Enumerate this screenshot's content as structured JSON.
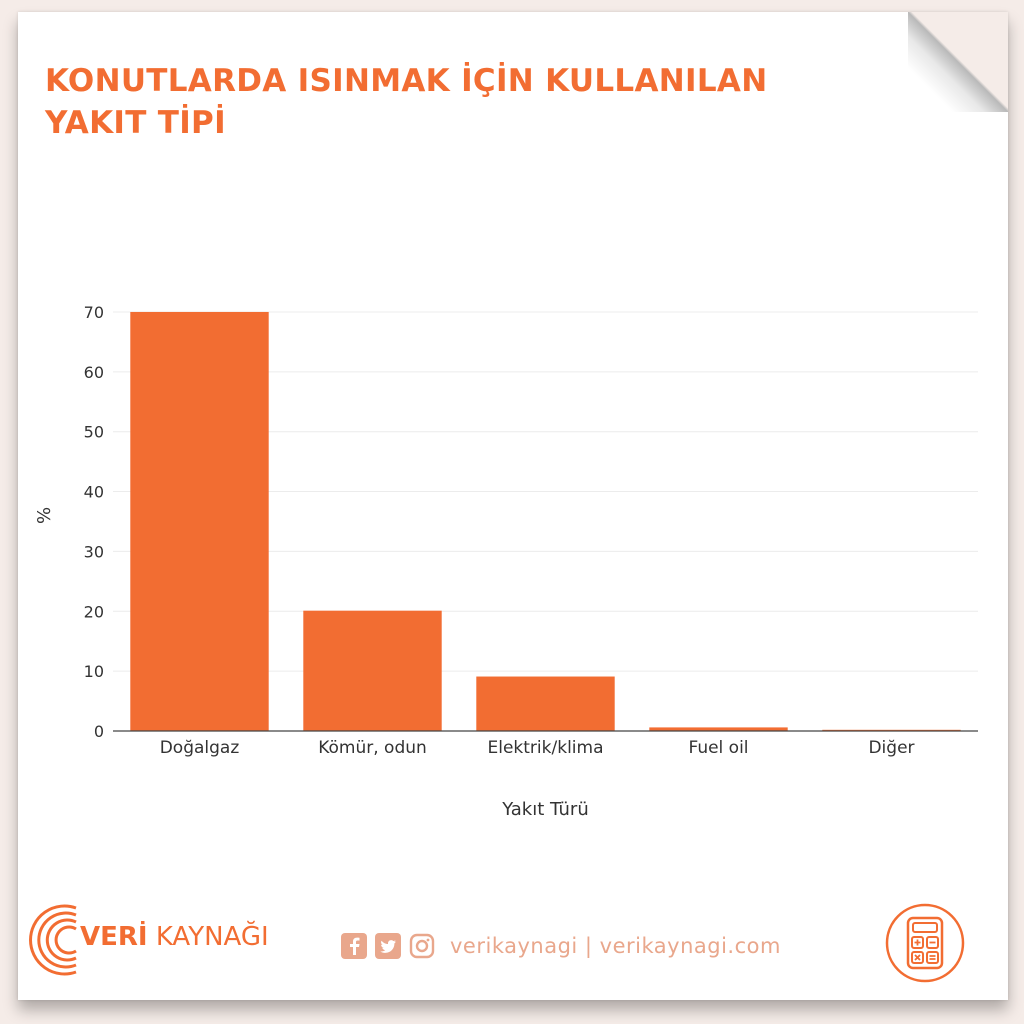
{
  "title_lines": [
    "KONUTLARDA ISINMAK İÇİN KULLANILAN",
    "YAKIT TİPİ"
  ],
  "chart_data": {
    "type": "bar",
    "title": "KONUTLARDA ISINMAK İÇİN KULLANILAN YAKIT TİPİ",
    "categories": [
      "Doğalgaz",
      "Kömür, odun",
      "Elektrik/klima",
      "Fuel oil",
      "Diğer"
    ],
    "values": [
      70,
      20.1,
      9.1,
      0.6,
      0.2
    ],
    "xlabel": "Yakıt Türü",
    "ylabel": "%",
    "ylim": [
      0,
      72
    ],
    "yticks": [
      0,
      10,
      20,
      30,
      40,
      50,
      60,
      70
    ],
    "grid": true,
    "bar_color": "#f26d32"
  },
  "footer": {
    "brand_bold": "VERİ",
    "brand_rest": " KAYNAĞI",
    "social_text": "verikaynagi | verikaynagi.com",
    "brand_color": "#f26d32",
    "social_color": "#e9a78c"
  }
}
